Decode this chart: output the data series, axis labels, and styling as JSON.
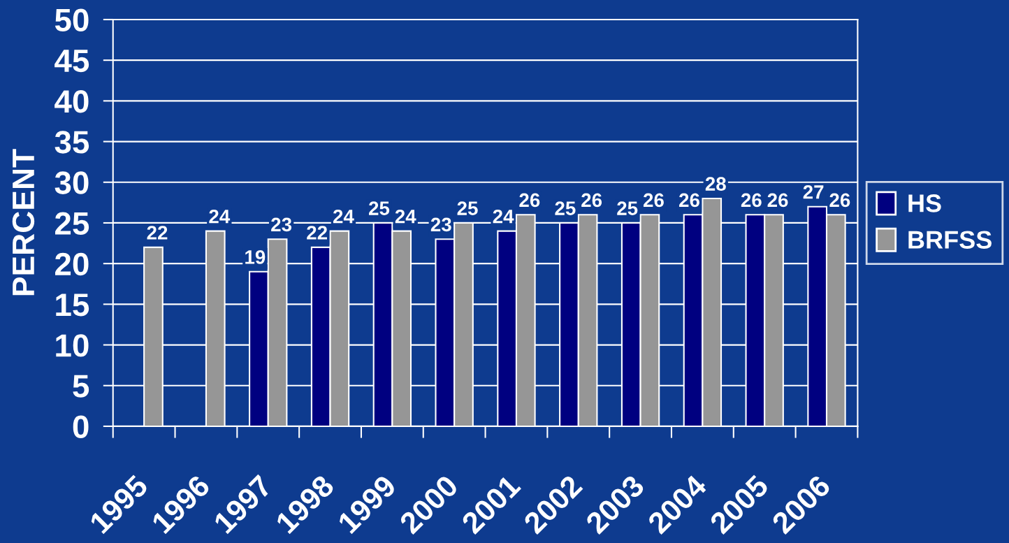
{
  "chart_data": {
    "type": "bar",
    "categories": [
      "1995",
      "1996",
      "1997",
      "1998",
      "1999",
      "2000",
      "2001",
      "2002",
      "2003",
      "2004",
      "2005",
      "2006"
    ],
    "series": [
      {
        "name": "HS",
        "color": "#000080",
        "values": [
          null,
          null,
          19,
          22,
          25,
          23,
          24,
          25,
          25,
          26,
          26,
          27
        ]
      },
      {
        "name": "BRFSS",
        "color": "#969696",
        "values": [
          22,
          24,
          23,
          24,
          24,
          25,
          26,
          26,
          26,
          28,
          26,
          26
        ]
      }
    ],
    "ylabel": "PERCENT",
    "ylim": [
      0,
      50
    ],
    "yticks": [
      0,
      5,
      10,
      15,
      20,
      25,
      30,
      35,
      40,
      45,
      50
    ],
    "grid": "y",
    "legend": "right",
    "data_labels": true
  }
}
